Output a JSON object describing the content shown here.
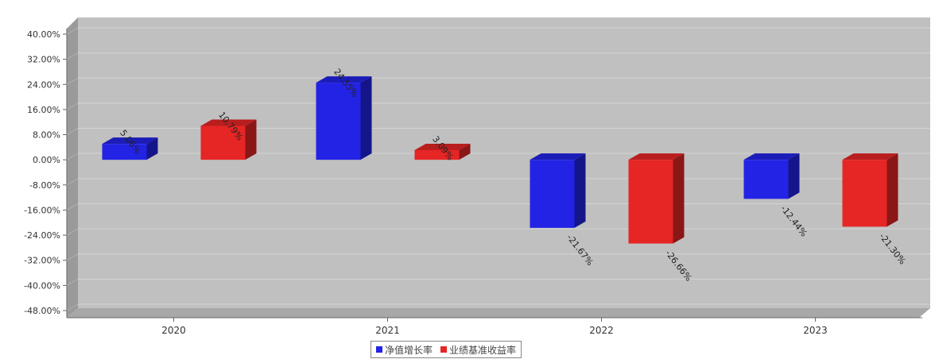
{
  "chart_data": {
    "type": "bar",
    "title": "",
    "xlabel": "",
    "ylabel": "",
    "categories": [
      "2020",
      "2021",
      "2022",
      "2023"
    ],
    "series": [
      {
        "name": "净值增长率",
        "color": "#2323e6",
        "values": [
          5.06,
          24.55,
          -21.67,
          -12.44
        ]
      },
      {
        "name": "业绩基准收益率",
        "color": "#e62525",
        "values": [
          10.79,
          3.09,
          -26.66,
          -21.3
        ]
      }
    ],
    "value_labels": [
      [
        "5.06%",
        "24.55%",
        "-21.67%",
        "-12.44%"
      ],
      [
        "10.79%",
        "3.09%",
        "-26.66%",
        "-21.30%"
      ]
    ],
    "y_ticks": [
      "40.00%",
      "32.00%",
      "24.00%",
      "16.00%",
      "8.00%",
      "0.00%",
      "-8.00%",
      "-16.00%",
      "-24.00%",
      "-32.00%",
      "-40.00%",
      "-48.00%"
    ],
    "y_tick_values": [
      40,
      32,
      24,
      16,
      8,
      0,
      -8,
      -16,
      -24,
      -32,
      -40,
      -48
    ],
    "ylim": [
      -48,
      40
    ],
    "grid": true,
    "legend_position": "bottom-center",
    "plot_background": "#c0c0c0"
  }
}
